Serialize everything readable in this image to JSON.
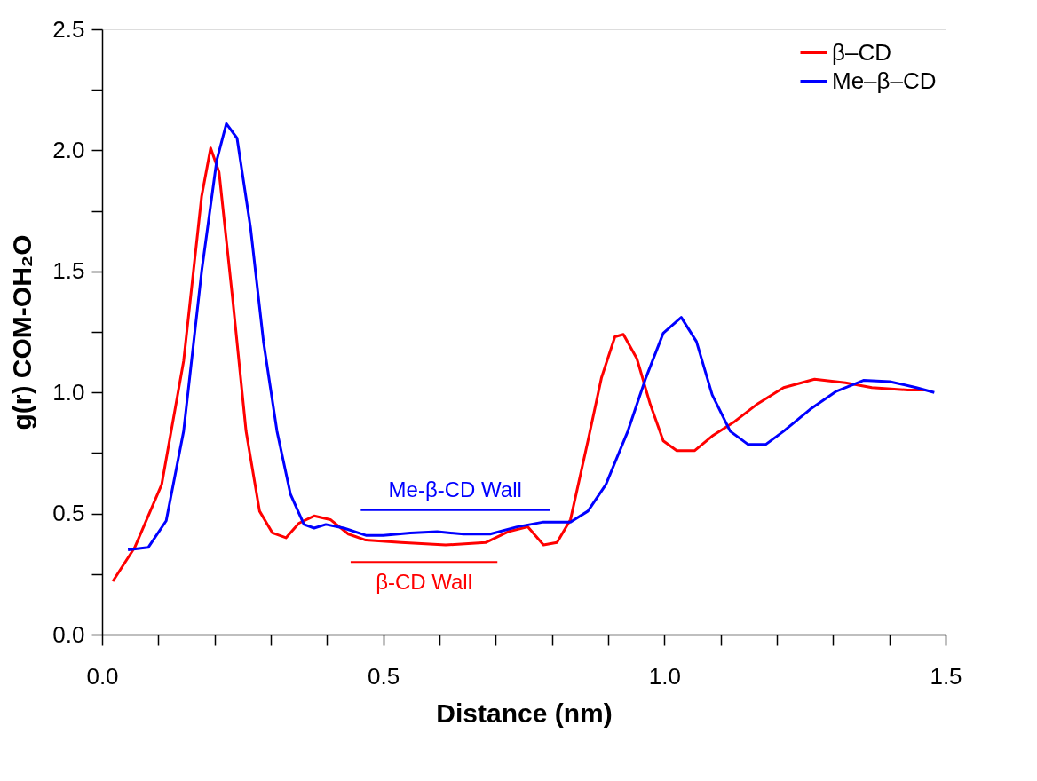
{
  "chart_data": {
    "type": "line",
    "xlabel": "Distance (nm)",
    "ylabel": "g(r) COM-OH₂O",
    "xlim": [
      0,
      1.5
    ],
    "ylim": [
      0,
      2.5
    ],
    "xticks": [
      {
        "value": 0,
        "label": "0.0"
      },
      {
        "value": 0.1,
        "label": null
      },
      {
        "value": 0.2,
        "label": null
      },
      {
        "value": 0.3,
        "label": null
      },
      {
        "value": 0.4,
        "label": null
      },
      {
        "value": 0.5,
        "label": "0.5"
      },
      {
        "value": 0.6,
        "label": null
      },
      {
        "value": 0.7,
        "label": null
      },
      {
        "value": 0.8,
        "label": null
      },
      {
        "value": 0.9,
        "label": null
      },
      {
        "value": 1.0,
        "label": "1.0"
      },
      {
        "value": 1.1,
        "label": null
      },
      {
        "value": 1.2,
        "label": null
      },
      {
        "value": 1.3,
        "label": null
      },
      {
        "value": 1.4,
        "label": null
      },
      {
        "value": 1.5,
        "label": "1.5"
      }
    ],
    "yticks": [
      {
        "value": 0,
        "label": "0.0"
      },
      {
        "value": 0.25,
        "label": null
      },
      {
        "value": 0.5,
        "label": "0.5"
      },
      {
        "value": 0.75,
        "label": null
      },
      {
        "value": 1.0,
        "label": "1.0"
      },
      {
        "value": 1.25,
        "label": null
      },
      {
        "value": 1.5,
        "label": "1.5"
      },
      {
        "value": 1.75,
        "label": null
      },
      {
        "value": 2.0,
        "label": "2.0"
      },
      {
        "value": 2.25,
        "label": null
      },
      {
        "value": 2.5,
        "label": "2.5"
      }
    ],
    "grid": false,
    "legend": "top right",
    "marker": "none",
    "line_style": "solid",
    "series": [
      {
        "name": "β–CD",
        "color": "#ff0000",
        "x": [
          0.019,
          0.058,
          0.106,
          0.145,
          0.177,
          0.193,
          0.208,
          0.232,
          0.256,
          0.28,
          0.303,
          0.327,
          0.35,
          0.377,
          0.406,
          0.438,
          0.469,
          0.532,
          0.611,
          0.682,
          0.722,
          0.757,
          0.785,
          0.809,
          0.833,
          0.864,
          0.888,
          0.912,
          0.927,
          0.951,
          0.975,
          0.998,
          1.022,
          1.054,
          1.085,
          1.125,
          1.164,
          1.212,
          1.267,
          1.322,
          1.369,
          1.433,
          1.464
        ],
        "values": [
          0.22,
          0.36,
          0.62,
          1.13,
          1.81,
          2.01,
          1.91,
          1.39,
          0.84,
          0.51,
          0.42,
          0.4,
          0.46,
          0.49,
          0.475,
          0.415,
          0.39,
          0.38,
          0.37,
          0.38,
          0.425,
          0.445,
          0.37,
          0.38,
          0.475,
          0.8,
          1.06,
          1.23,
          1.24,
          1.14,
          0.95,
          0.8,
          0.76,
          0.76,
          0.82,
          0.88,
          0.95,
          1.02,
          1.055,
          1.04,
          1.02,
          1.01,
          1.01
        ]
      },
      {
        "name": "Me–β–CD",
        "color": "#0000ff",
        "x": [
          0.046,
          0.082,
          0.114,
          0.145,
          0.177,
          0.204,
          0.221,
          0.24,
          0.264,
          0.287,
          0.311,
          0.335,
          0.359,
          0.377,
          0.398,
          0.43,
          0.469,
          0.5,
          0.548,
          0.596,
          0.643,
          0.69,
          0.738,
          0.785,
          0.833,
          0.864,
          0.896,
          0.935,
          0.967,
          0.998,
          1.03,
          1.057,
          1.085,
          1.117,
          1.149,
          1.18,
          1.212,
          1.259,
          1.306,
          1.354,
          1.401,
          1.448,
          1.48
        ],
        "values": [
          0.35,
          0.36,
          0.47,
          0.84,
          1.5,
          1.96,
          2.11,
          2.05,
          1.68,
          1.21,
          0.84,
          0.58,
          0.455,
          0.44,
          0.455,
          0.44,
          0.41,
          0.41,
          0.42,
          0.425,
          0.415,
          0.415,
          0.445,
          0.465,
          0.465,
          0.51,
          0.62,
          0.84,
          1.06,
          1.245,
          1.31,
          1.21,
          0.99,
          0.84,
          0.785,
          0.785,
          0.84,
          0.93,
          1.005,
          1.05,
          1.045,
          1.02,
          1.0
        ]
      },
      {
        "color": "#0000ff",
        "x": [
          0.46,
          0.796
        ],
        "values": [
          0.514,
          0.514
        ]
      },
      {
        "color": "#ff0000",
        "x": [
          0.442,
          0.703
        ],
        "values": [
          0.3,
          0.3
        ]
      }
    ],
    "annotations": [
      "Me-β-CD Wall",
      "β-CD Wall"
    ]
  }
}
